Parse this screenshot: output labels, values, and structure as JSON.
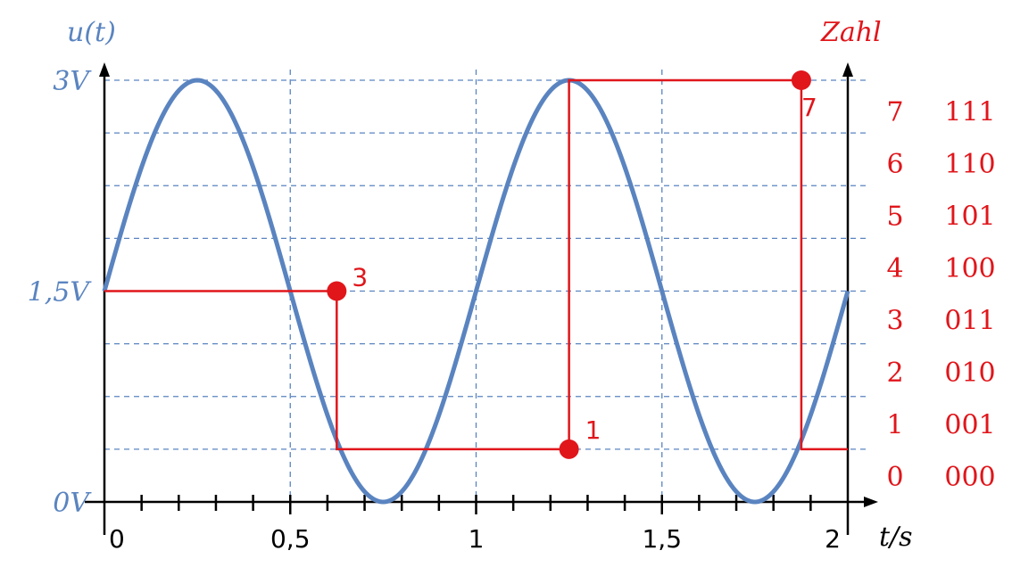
{
  "chart_data": {
    "type": "line",
    "left_axis_label": "u(t)",
    "right_axis_label": "Zahl",
    "x_axis_label": "t/s",
    "x_ticks": [
      "0",
      "0,5",
      "1",
      "1,5",
      "2"
    ],
    "y_ticks": [
      {
        "label": "0V",
        "value": 0
      },
      {
        "label": "1,5V",
        "value": 1.5
      },
      {
        "label": "3V",
        "value": 3
      }
    ],
    "xlim": [
      0,
      2
    ],
    "ylim": [
      0,
      3
    ],
    "grid": true,
    "signal": {
      "function": "sine",
      "offset": 1.5,
      "amplitude": 1.5,
      "period": 1.0,
      "x_range": [
        0,
        2
      ],
      "color": "#5a84c0"
    },
    "sample_hold": {
      "color": "#e0161b",
      "samples": [
        {
          "t": 0.625,
          "value": 1.5,
          "code": "3"
        },
        {
          "t": 1.25,
          "value": 0.375,
          "code": "1"
        },
        {
          "t": 1.875,
          "value": 3.0,
          "code": "7"
        }
      ],
      "steps": [
        {
          "t_start": 0,
          "t_end": 0.625,
          "value": 1.5
        },
        {
          "t_start": 0.625,
          "t_end": 1.25,
          "value": 0.375
        },
        {
          "t_start": 1.25,
          "t_end": 1.875,
          "value": 3.0
        },
        {
          "t_start": 1.875,
          "t_end": 2.0,
          "value": 0.375
        }
      ]
    },
    "levels": [
      {
        "number": "0",
        "code": "000"
      },
      {
        "number": "1",
        "code": "001"
      },
      {
        "number": "2",
        "code": "010"
      },
      {
        "number": "3",
        "code": "011"
      },
      {
        "number": "4",
        "code": "100"
      },
      {
        "number": "5",
        "code": "101"
      },
      {
        "number": "6",
        "code": "110"
      },
      {
        "number": "7",
        "code": "111"
      }
    ],
    "colors": {
      "signal": "#5a84c0",
      "quantized": "#e0161b",
      "grid": "#5a84c0",
      "axes": "#000000"
    }
  }
}
